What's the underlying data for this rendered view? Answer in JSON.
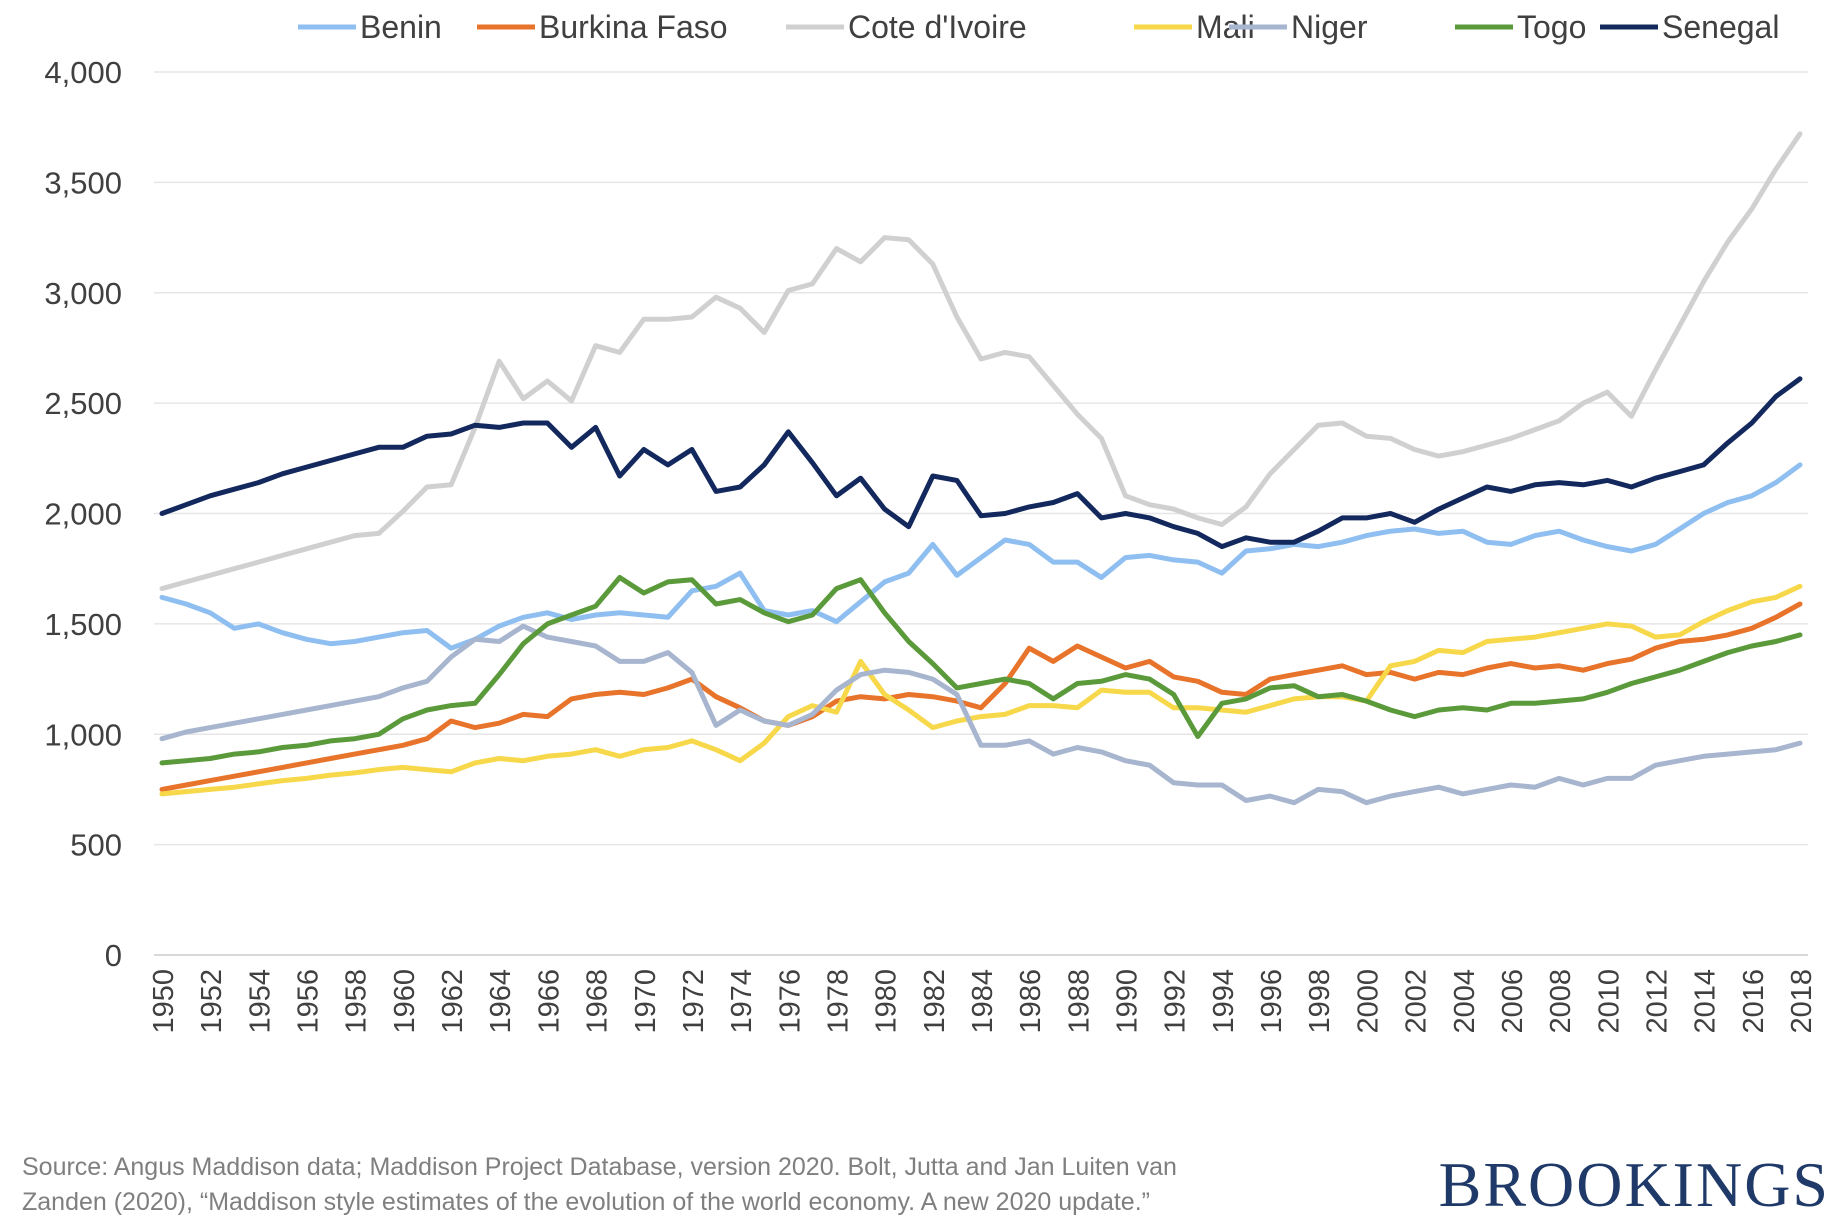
{
  "chart_data": {
    "type": "line",
    "title": "",
    "xlabel": "",
    "ylabel": "",
    "ylim": [
      0,
      4000
    ],
    "yticks": [
      0,
      500,
      1000,
      1500,
      2000,
      2500,
      3000,
      3500,
      4000
    ],
    "ytick_labels": [
      "0",
      "500",
      "1,000",
      "1,500",
      "2,000",
      "2,500",
      "3,000",
      "3,500",
      "4,000"
    ],
    "x": [
      1950,
      1951,
      1952,
      1953,
      1954,
      1955,
      1956,
      1957,
      1958,
      1959,
      1960,
      1961,
      1962,
      1963,
      1964,
      1965,
      1966,
      1967,
      1968,
      1969,
      1970,
      1971,
      1972,
      1973,
      1974,
      1975,
      1976,
      1977,
      1978,
      1979,
      1980,
      1981,
      1982,
      1983,
      1984,
      1985,
      1986,
      1987,
      1988,
      1989,
      1990,
      1991,
      1992,
      1993,
      1994,
      1995,
      1996,
      1997,
      1998,
      1999,
      2000,
      2001,
      2002,
      2003,
      2004,
      2005,
      2006,
      2007,
      2008,
      2009,
      2010,
      2011,
      2012,
      2013,
      2014,
      2015,
      2016,
      2017,
      2018
    ],
    "xtick_labels": [
      "1950",
      "1952",
      "1954",
      "1956",
      "1958",
      "1960",
      "1962",
      "1964",
      "1966",
      "1968",
      "1970",
      "1972",
      "1974",
      "1976",
      "1978",
      "1980",
      "1982",
      "1984",
      "1986",
      "1988",
      "1990",
      "1992",
      "1994",
      "1996",
      "1998",
      "2000",
      "2002",
      "2004",
      "2006",
      "2008",
      "2010",
      "2012",
      "2014",
      "2016",
      "2018"
    ],
    "grid": "horizontal",
    "legend": "top",
    "series": [
      {
        "name": "Benin",
        "color": "#8fbff0",
        "values": [
          1620,
          1590,
          1550,
          1480,
          1500,
          1460,
          1430,
          1410,
          1420,
          1440,
          1460,
          1470,
          1390,
          1430,
          1490,
          1530,
          1550,
          1520,
          1540,
          1550,
          1540,
          1530,
          1650,
          1670,
          1730,
          1560,
          1540,
          1560,
          1510,
          1600,
          1690,
          1730,
          1860,
          1720,
          1800,
          1880,
          1860,
          1780,
          1780,
          1710,
          1800,
          1810,
          1790,
          1780,
          1730,
          1830,
          1840,
          1860,
          1850,
          1870,
          1900,
          1920,
          1930,
          1910,
          1920,
          1870,
          1860,
          1900,
          1920,
          1880,
          1850,
          1830,
          1860,
          1930,
          2000,
          2050,
          2080,
          2140,
          2220
        ]
      },
      {
        "name": "Burkina Faso",
        "color": "#e8732a",
        "values": [
          750,
          770,
          790,
          810,
          830,
          850,
          870,
          890,
          910,
          930,
          950,
          980,
          1060,
          1030,
          1050,
          1090,
          1080,
          1160,
          1180,
          1190,
          1180,
          1210,
          1250,
          1170,
          1120,
          1060,
          1040,
          1080,
          1150,
          1170,
          1160,
          1180,
          1170,
          1150,
          1120,
          1230,
          1390,
          1330,
          1400,
          1350,
          1300,
          1330,
          1260,
          1240,
          1190,
          1180,
          1250,
          1270,
          1290,
          1310,
          1270,
          1280,
          1250,
          1280,
          1270,
          1300,
          1320,
          1300,
          1310,
          1290,
          1320,
          1340,
          1390,
          1420,
          1430,
          1450,
          1480,
          1530,
          1590
        ]
      },
      {
        "name": "Cote d'Ivoire",
        "color": "#d0d0d0",
        "values": [
          1660,
          1690,
          1720,
          1750,
          1780,
          1810,
          1840,
          1870,
          1900,
          1910,
          2010,
          2120,
          2130,
          2390,
          2690,
          2520,
          2600,
          2510,
          2760,
          2730,
          2880,
          2880,
          2890,
          2980,
          2930,
          2820,
          3010,
          3040,
          3200,
          3140,
          3250,
          3240,
          3130,
          2890,
          2700,
          2730,
          2710,
          2580,
          2450,
          2340,
          2080,
          2040,
          2020,
          1980,
          1950,
          2030,
          2180,
          2290,
          2400,
          2410,
          2350,
          2340,
          2290,
          2260,
          2280,
          2310,
          2340,
          2380,
          2420,
          2500,
          2550,
          2440,
          2650,
          2850,
          3050,
          3230,
          3380,
          3560,
          3720
        ]
      },
      {
        "name": "Mali",
        "color": "#f7d84a",
        "values": [
          730,
          740,
          750,
          760,
          775,
          790,
          800,
          815,
          825,
          840,
          850,
          840,
          830,
          870,
          890,
          880,
          900,
          910,
          930,
          900,
          930,
          940,
          970,
          930,
          880,
          960,
          1080,
          1130,
          1100,
          1330,
          1180,
          1110,
          1030,
          1060,
          1080,
          1090,
          1130,
          1130,
          1120,
          1200,
          1190,
          1190,
          1120,
          1120,
          1110,
          1100,
          1130,
          1160,
          1170,
          1170,
          1150,
          1310,
          1330,
          1380,
          1370,
          1420,
          1430,
          1440,
          1460,
          1480,
          1500,
          1490,
          1440,
          1450,
          1510,
          1560,
          1600,
          1620,
          1670
        ]
      },
      {
        "name": "Niger",
        "color": "#a7b5cf",
        "values": [
          980,
          1010,
          1030,
          1050,
          1070,
          1090,
          1110,
          1130,
          1150,
          1170,
          1210,
          1240,
          1350,
          1430,
          1420,
          1490,
          1440,
          1420,
          1400,
          1330,
          1330,
          1370,
          1280,
          1040,
          1110,
          1060,
          1040,
          1090,
          1200,
          1270,
          1290,
          1280,
          1250,
          1180,
          950,
          950,
          970,
          910,
          940,
          920,
          880,
          860,
          780,
          770,
          770,
          700,
          720,
          690,
          750,
          740,
          690,
          720,
          740,
          760,
          730,
          750,
          770,
          760,
          800,
          770,
          800,
          800,
          860,
          880,
          900,
          910,
          920,
          930,
          960
        ]
      },
      {
        "name": "Togo",
        "color": "#5b9a3b",
        "values": [
          870,
          880,
          890,
          910,
          920,
          940,
          950,
          970,
          980,
          1000,
          1070,
          1110,
          1130,
          1140,
          1270,
          1410,
          1500,
          1540,
          1580,
          1710,
          1640,
          1690,
          1700,
          1590,
          1610,
          1550,
          1510,
          1540,
          1660,
          1700,
          1550,
          1420,
          1320,
          1210,
          1230,
          1250,
          1230,
          1160,
          1230,
          1240,
          1270,
          1250,
          1180,
          990,
          1140,
          1160,
          1210,
          1220,
          1170,
          1180,
          1150,
          1110,
          1080,
          1110,
          1120,
          1110,
          1140,
          1140,
          1150,
          1160,
          1190,
          1230,
          1260,
          1290,
          1330,
          1370,
          1400,
          1420,
          1450
        ]
      },
      {
        "name": "Senegal",
        "color": "#13295e",
        "values": [
          2000,
          2040,
          2080,
          2110,
          2140,
          2180,
          2210,
          2240,
          2270,
          2300,
          2300,
          2350,
          2360,
          2400,
          2390,
          2410,
          2410,
          2300,
          2390,
          2170,
          2290,
          2220,
          2290,
          2100,
          2120,
          2220,
          2370,
          2230,
          2080,
          2160,
          2020,
          1940,
          2170,
          2150,
          1990,
          2000,
          2030,
          2050,
          2090,
          1980,
          2000,
          1980,
          1940,
          1910,
          1850,
          1890,
          1870,
          1870,
          1920,
          1980,
          1980,
          2000,
          1960,
          2020,
          2070,
          2120,
          2100,
          2130,
          2140,
          2130,
          2150,
          2120,
          2160,
          2190,
          2220,
          2320,
          2410,
          2530,
          2610
        ]
      }
    ]
  },
  "footer": {
    "source_line1": "Source: Angus Maddison data; Maddison Project Database, version 2020. Bolt, Jutta and Jan Luiten van",
    "source_line2": "Zanden (2020), “Maddison style estimates of the evolution of the world economy. A new 2020 update.”",
    "brand": "BROOKINGS"
  }
}
